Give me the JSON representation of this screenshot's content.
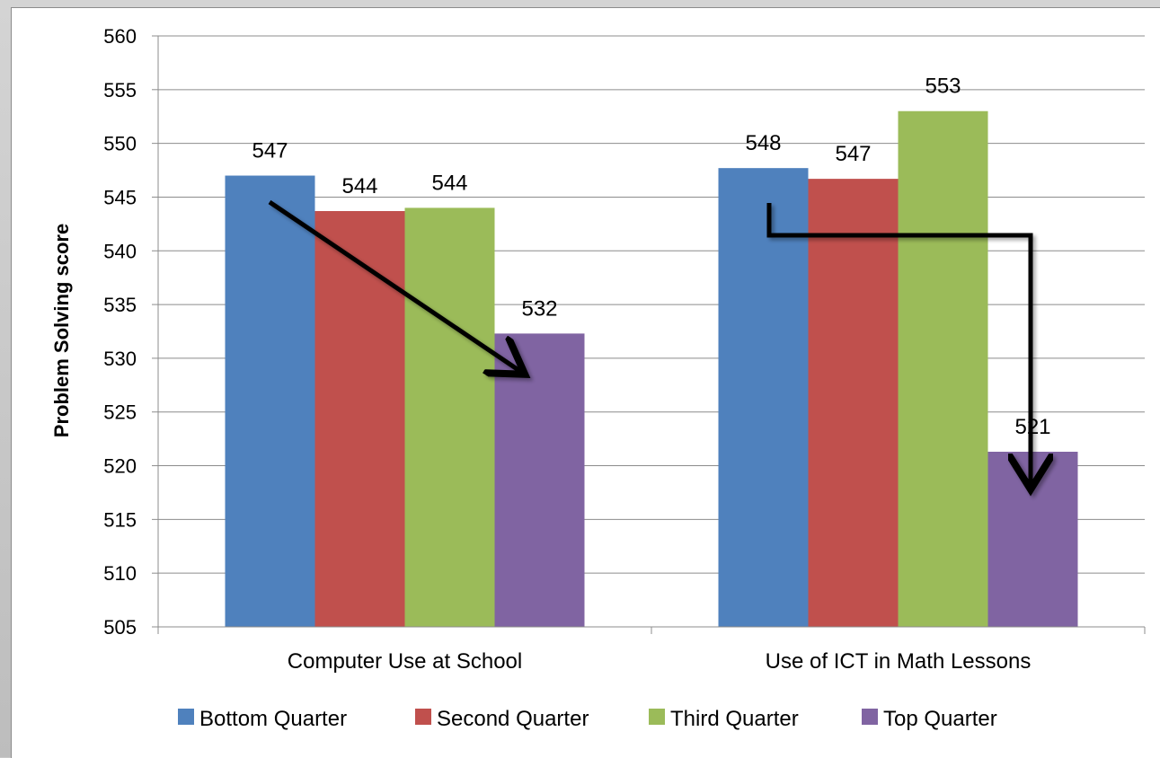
{
  "chart_data": {
    "type": "bar",
    "categories": [
      "Computer Use at School",
      "Use of ICT in Math Lessons"
    ],
    "series": [
      {
        "name": "Bottom Quarter",
        "color": "#4f81bd",
        "values": [
          547,
          547.7
        ],
        "labels": [
          "547",
          "548"
        ]
      },
      {
        "name": "Second Quarter",
        "color": "#c0504d",
        "values": [
          543.7,
          546.7
        ],
        "labels": [
          "544",
          "547"
        ]
      },
      {
        "name": "Third Quarter",
        "color": "#9bbb59",
        "values": [
          544,
          553
        ],
        "labels": [
          "544",
          "553"
        ]
      },
      {
        "name": "Top Quarter",
        "color": "#8064a2",
        "values": [
          532.3,
          521.3
        ],
        "labels": [
          "532",
          "521"
        ]
      }
    ],
    "title": "",
    "xlabel": "",
    "ylabel": "Problem Solving score",
    "ylim": [
      505,
      560
    ],
    "yticks": [
      "505",
      "510",
      "515",
      "520",
      "525",
      "530",
      "535",
      "540",
      "545",
      "550",
      "555",
      "560"
    ],
    "grid": true,
    "legend": "bottom",
    "annotations": [
      {
        "type": "arrow",
        "description": "diagonal arrow from Bottom Quarter down to Top Quarter",
        "category": "Computer Use at School"
      },
      {
        "type": "arrow",
        "description": "elbow arrow from Bottom Quarter across and down to Top Quarter",
        "category": "Use of ICT in Math Lessons"
      }
    ]
  }
}
